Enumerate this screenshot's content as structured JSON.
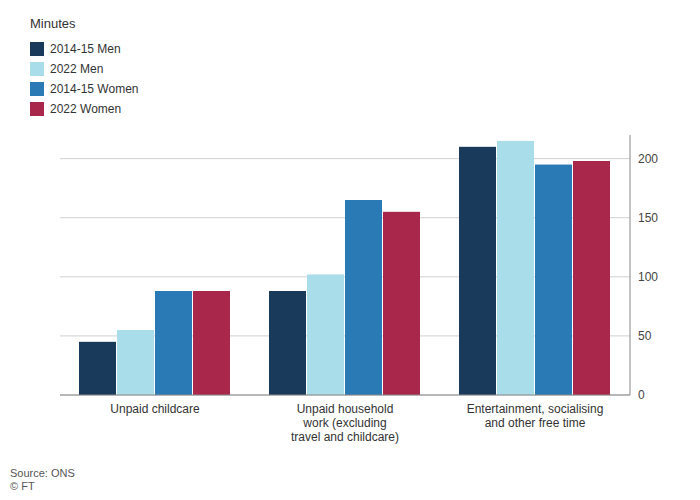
{
  "chart_data": {
    "type": "bar",
    "ylabel": "Minutes",
    "categories": [
      "Unpaid childcare",
      "Unpaid household\nwork (excluding\ntravel and childcare)",
      "Entertainment, socialising\nand other free time"
    ],
    "series": [
      {
        "name": "2014-15 Men",
        "color": "#1a3a5c",
        "values": [
          45,
          88,
          210
        ]
      },
      {
        "name": "2022 Men",
        "color": "#a8dde9",
        "values": [
          55,
          102,
          215
        ]
      },
      {
        "name": "2014-15 Women",
        "color": "#2a7ab5",
        "values": [
          88,
          165,
          195
        ]
      },
      {
        "name": "2022 Women",
        "color": "#a8274a",
        "values": [
          88,
          155,
          198
        ]
      }
    ],
    "ylim": [
      0,
      220
    ],
    "yticks": [
      0,
      50,
      100,
      150,
      200
    ],
    "grid": true,
    "legend": "upper left",
    "annotations": [
      "Source: ONS\n© FT"
    ]
  }
}
